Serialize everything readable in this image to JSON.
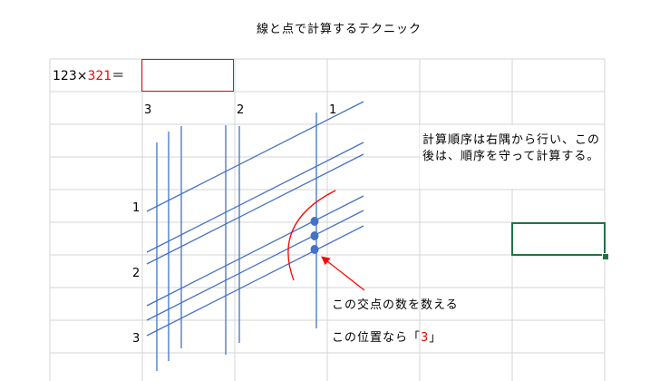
{
  "title": "線と点で計算するテクニック",
  "formula": {
    "left": "123",
    "times": "×",
    "right": "321",
    "equals": "＝"
  },
  "answer_value": "",
  "column_digits": [
    "3",
    "2",
    "1"
  ],
  "row_digits": [
    "1",
    "2",
    "3"
  ],
  "note": "計算順序は右隅から行い、この後は、順序を守って計算する。",
  "callout_count": "この交点の数を数える",
  "callout_position_prefix": "この位置なら「",
  "callout_position_value": "3",
  "callout_position_suffix": "」",
  "colors": {
    "line": "#4472c4",
    "dot": "#4472c4",
    "accent": "#ff0000",
    "selection": "#217346",
    "grid": "#d4d4d4"
  }
}
